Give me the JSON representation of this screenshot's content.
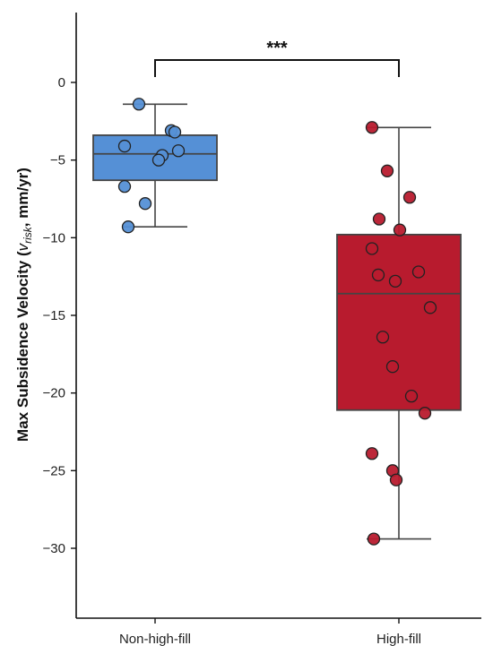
{
  "chart_data": {
    "type": "box",
    "ylabel_main": "Max Subsidence Velocity (",
    "ylabel_var": "v",
    "ylabel_sub": "risk",
    "ylabel_unit": ", mm/yr)",
    "ylim": [
      -34.5,
      4.5
    ],
    "yticks": [
      0,
      -5,
      -10,
      -15,
      -20,
      -25,
      -30
    ],
    "categories": [
      "Non-high-fill",
      "High-fill"
    ],
    "colors": [
      "#5590d6",
      "#b81b2e"
    ],
    "groups": [
      {
        "name": "Non-high-fill",
        "box": {
          "whisker_high": -1.4,
          "q3": -3.4,
          "median": -4.6,
          "q1": -6.3,
          "whisker_low": -9.3
        },
        "points": [
          -1.4,
          -3.1,
          -3.2,
          -4.1,
          -4.4,
          -4.7,
          -5.0,
          -6.7,
          -7.8,
          -9.3
        ]
      },
      {
        "name": "High-fill",
        "box": {
          "whisker_high": -2.9,
          "q3": -9.8,
          "median": -13.6,
          "q1": -21.1,
          "whisker_low": -29.4
        },
        "points": [
          -2.9,
          -5.7,
          -7.4,
          -8.8,
          -9.5,
          -10.7,
          -12.2,
          -12.4,
          -12.8,
          -14.5,
          -16.4,
          -18.3,
          -20.2,
          -21.3,
          -23.9,
          -25.0,
          -25.6,
          -29.4
        ]
      }
    ],
    "significance": "***"
  }
}
